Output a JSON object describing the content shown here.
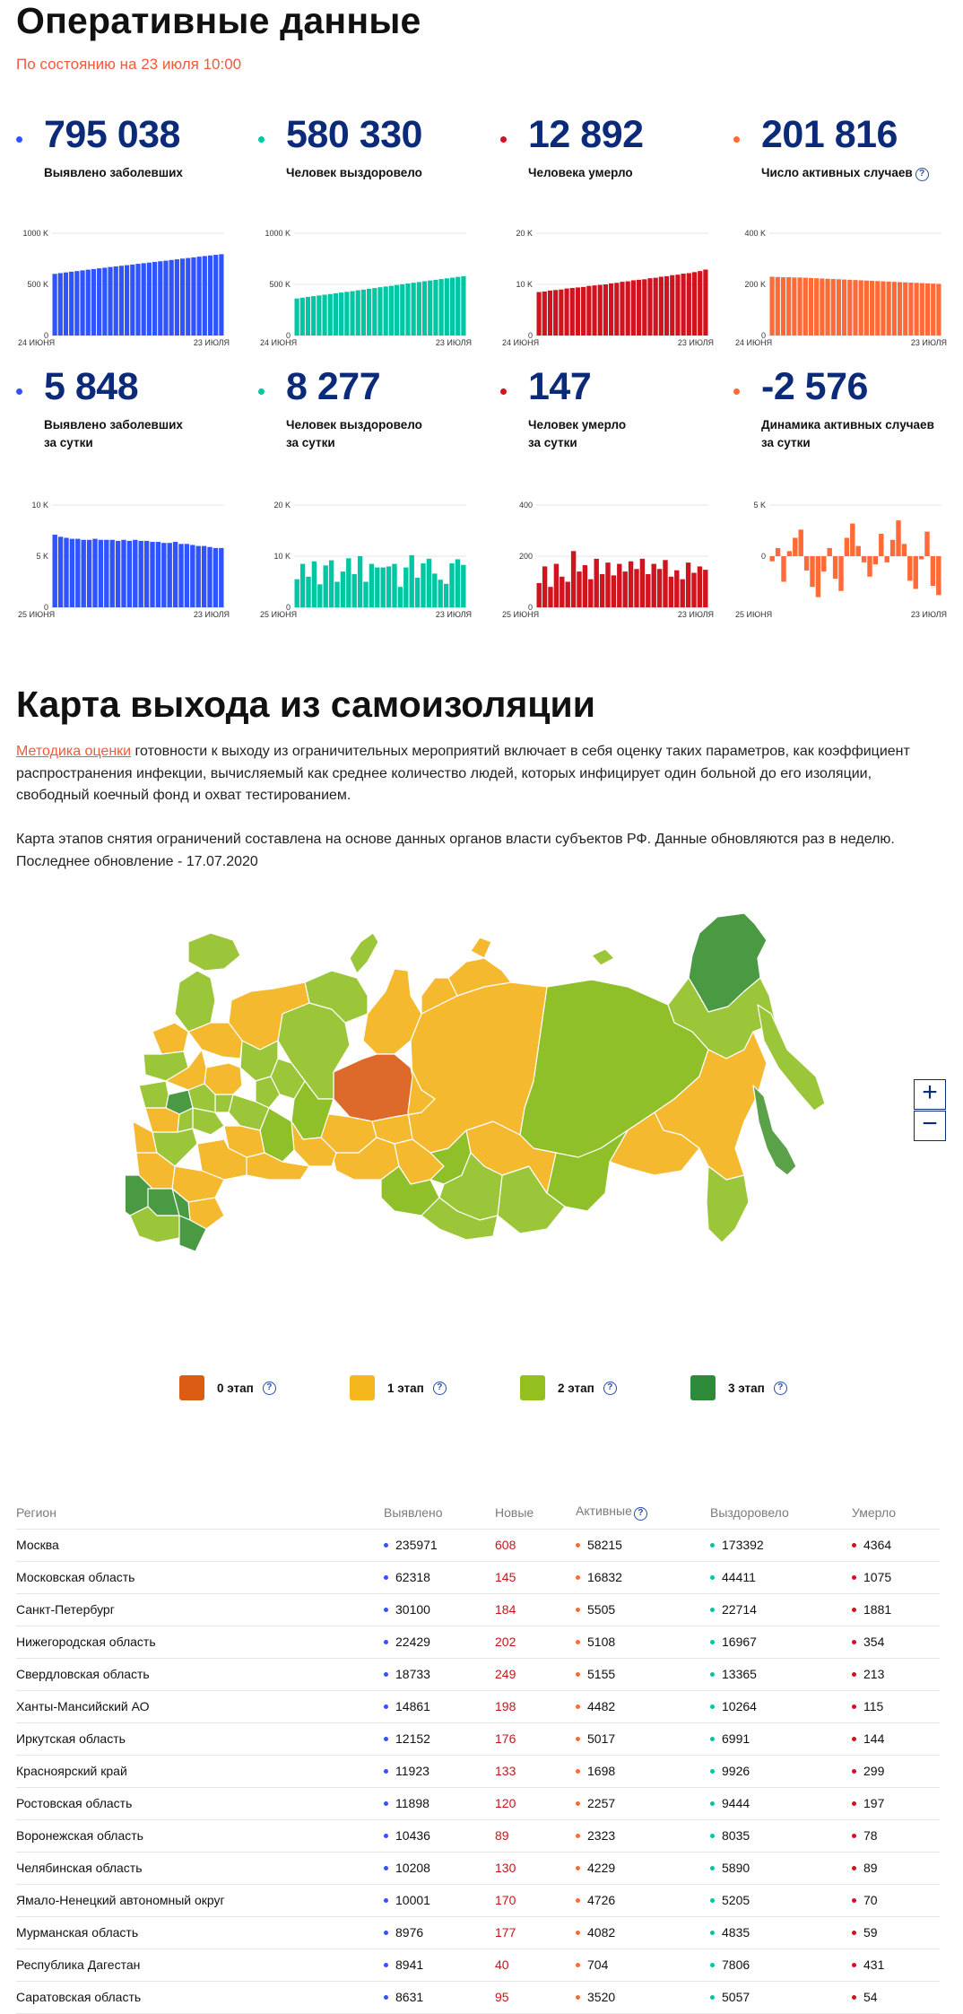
{
  "header": {
    "title": "Оперативные данные",
    "as_of": "По состоянию на 23 июля 10:00"
  },
  "colors": {
    "blue": "#2f54ff",
    "teal": "#00c7a3",
    "red": "#d1121f",
    "orange": "#ff6a36",
    "navy": "#0b2a7a",
    "accent": "#ec5b3b",
    "stage0": "#dd5c14",
    "stage1": "#f4b71c",
    "stage2": "#93c01f",
    "stage3": "#2e8b3a"
  },
  "stats_total": [
    {
      "value": "795 038",
      "label1": "Выявлено заболевших",
      "label2": "",
      "color": "blue",
      "help": false,
      "chart": {
        "type": "bar",
        "y_ticks": [
          "1000 K",
          "500 K",
          "0"
        ],
        "ymax": 1000,
        "x_start": "24 ИЮНЯ",
        "x_end": "23 ИЮЛЯ",
        "values": [
          603,
          610,
          617,
          624,
          630,
          637,
          644,
          650,
          657,
          663,
          670,
          676,
          682,
          688,
          694,
          701,
          707,
          713,
          720,
          726,
          732,
          739,
          745,
          752,
          758,
          764,
          771,
          777,
          783,
          789,
          795
        ]
      }
    },
    {
      "value": "580 330",
      "label1": "Человек выздоровело",
      "label2": "",
      "color": "teal",
      "help": false,
      "chart": {
        "type": "bar",
        "y_ticks": [
          "1000 K",
          "500 K",
          "0"
        ],
        "ymax": 1000,
        "x_start": "24 ИЮНЯ",
        "x_end": "23 ИЮЛЯ",
        "values": [
          362,
          370,
          378,
          385,
          392,
          399,
          406,
          413,
          420,
          427,
          434,
          442,
          449,
          456,
          464,
          472,
          479,
          486,
          494,
          501,
          509,
          516,
          523,
          531,
          538,
          545,
          552,
          559,
          566,
          573,
          580
        ]
      }
    },
    {
      "value": "12 892",
      "label1": "Человека умерло",
      "label2": "",
      "color": "red",
      "help": false,
      "chart": {
        "type": "bar",
        "y_ticks": [
          "20 K",
          "10 K",
          "0"
        ],
        "ymax": 20,
        "x_start": "24 ИЮНЯ",
        "x_end": "23 ИЮЛЯ",
        "values": [
          8.5,
          8.6,
          8.8,
          8.9,
          9.0,
          9.2,
          9.3,
          9.4,
          9.5,
          9.7,
          9.8,
          9.9,
          10.0,
          10.2,
          10.3,
          10.5,
          10.6,
          10.8,
          10.9,
          11.0,
          11.2,
          11.3,
          11.5,
          11.6,
          11.8,
          11.9,
          12.1,
          12.2,
          12.4,
          12.6,
          12.9
        ]
      }
    },
    {
      "value": "201 816",
      "label1": "Число активных случаев",
      "label2": "",
      "color": "orange",
      "help": true,
      "chart": {
        "type": "bar",
        "y_ticks": [
          "400 K",
          "200 K",
          "0"
        ],
        "ymax": 400,
        "x_start": "24 ИЮНЯ",
        "x_end": "23 ИЮЛЯ",
        "values": [
          230,
          229,
          228,
          228,
          227,
          227,
          226,
          225,
          224,
          223,
          222,
          221,
          220,
          219,
          218,
          217,
          216,
          215,
          214,
          213,
          212,
          211,
          210,
          209,
          208,
          207,
          206,
          205,
          204,
          203,
          202
        ]
      }
    }
  ],
  "stats_daily": [
    {
      "value": "5 848",
      "label1": "Выявлено заболевших",
      "label2": "за сутки",
      "color": "blue",
      "help": false,
      "chart": {
        "type": "bar",
        "y_ticks": [
          "10 K",
          "5 K",
          "0"
        ],
        "ymin": 0,
        "ymax": 10,
        "x_start": "25 ИЮНЯ",
        "x_end": "23 ИЮЛЯ",
        "values": [
          7.1,
          6.9,
          6.8,
          6.7,
          6.7,
          6.6,
          6.6,
          6.7,
          6.6,
          6.6,
          6.6,
          6.5,
          6.6,
          6.5,
          6.6,
          6.5,
          6.5,
          6.4,
          6.4,
          6.3,
          6.3,
          6.4,
          6.2,
          6.2,
          6.1,
          6.0,
          6.0,
          5.9,
          5.8,
          5.8
        ]
      }
    },
    {
      "value": "8 277",
      "label1": "Человек выздоровело",
      "label2": "за сутки",
      "color": "teal",
      "help": false,
      "chart": {
        "type": "bar",
        "y_ticks": [
          "20 K",
          "10 K",
          "0"
        ],
        "ymin": 0,
        "ymax": 20,
        "x_start": "25 ИЮНЯ",
        "x_end": "23 ИЮЛЯ",
        "values": [
          5.5,
          8.5,
          6.0,
          9.0,
          4.5,
          8.2,
          9.2,
          5.0,
          7.0,
          9.6,
          6.5,
          10.0,
          5.0,
          8.5,
          7.8,
          7.8,
          8.0,
          8.5,
          4.0,
          7.8,
          10.2,
          5.8,
          8.6,
          9.5,
          6.6,
          5.4,
          4.6,
          8.6,
          9.4,
          8.3
        ]
      }
    },
    {
      "value": "147",
      "label1": "Человек умерло",
      "label2": "за сутки",
      "color": "red",
      "help": false,
      "chart": {
        "type": "bar",
        "y_ticks": [
          "400",
          "200",
          "0"
        ],
        "ymin": 0,
        "ymax": 400,
        "x_start": "25 ИЮНЯ",
        "x_end": "23 ИЮЛЯ",
        "values": [
          95,
          160,
          80,
          170,
          120,
          100,
          220,
          140,
          165,
          110,
          190,
          130,
          175,
          125,
          170,
          140,
          180,
          150,
          190,
          130,
          170,
          150,
          185,
          120,
          145,
          110,
          175,
          135,
          160,
          147
        ]
      }
    },
    {
      "value": "-2 576",
      "label1": "Динамика активных случаев",
      "label2": "за сутки",
      "color": "orange",
      "help": false,
      "chart": {
        "type": "posneg",
        "y_ticks": [
          "5 K",
          "0",
          ""
        ],
        "ymin": -5,
        "ymax": 5,
        "x_start": "25 ИЮНЯ",
        "x_end": "23 ИЮЛЯ",
        "values": [
          -0.5,
          0.8,
          -2.5,
          0.5,
          1.8,
          2.6,
          -1.4,
          -3.0,
          -4.0,
          -1.5,
          0.8,
          -2.2,
          -3.4,
          1.8,
          3.2,
          1.0,
          -0.6,
          -2.0,
          -0.8,
          2.2,
          -0.6,
          1.6,
          3.5,
          1.2,
          -2.4,
          -3.2,
          -0.3,
          2.4,
          -2.9,
          -3.8
        ]
      }
    }
  ],
  "map_section": {
    "title": "Карта выхода из самоизоляции",
    "link_text": "Методика оценки",
    "para1": "готовности к выходу из ограничительных мероприятий включает в себя оценку таких параметров, как коэффициент распространения инфекции, вычисляемый как среднее количество людей, которых инфицирует один больной до его изоляции, свободный коечный фонд и охват тестированием.",
    "para2": "Карта этапов снятия ограничений составлена на основе данных органов власти субъектов РФ. Данные обновляются раз в неделю. Последнее обновление - 17.07.2020",
    "zoom_in": "+",
    "zoom_out": "−",
    "legend": [
      {
        "label": "0 этап",
        "color": "stage0"
      },
      {
        "label": "1 этап",
        "color": "stage1"
      },
      {
        "label": "2 этап",
        "color": "stage2"
      },
      {
        "label": "3 этап",
        "color": "stage3"
      }
    ]
  },
  "table": {
    "headers": [
      "Регион",
      "Выявлено",
      "Новые",
      "Активные",
      "Выздоровело",
      "Умерло"
    ],
    "rows": [
      [
        "Москва",
        "235971",
        "608",
        "58215",
        "173392",
        "4364"
      ],
      [
        "Московская область",
        "62318",
        "145",
        "16832",
        "44411",
        "1075"
      ],
      [
        "Санкт-Петербург",
        "30100",
        "184",
        "5505",
        "22714",
        "1881"
      ],
      [
        "Нижегородская область",
        "22429",
        "202",
        "5108",
        "16967",
        "354"
      ],
      [
        "Свердловская область",
        "18733",
        "249",
        "5155",
        "13365",
        "213"
      ],
      [
        "Ханты-Мансийский АО",
        "14861",
        "198",
        "4482",
        "10264",
        "115"
      ],
      [
        "Иркутская область",
        "12152",
        "176",
        "5017",
        "6991",
        "144"
      ],
      [
        "Красноярский край",
        "11923",
        "133",
        "1698",
        "9926",
        "299"
      ],
      [
        "Ростовская область",
        "11898",
        "120",
        "2257",
        "9444",
        "197"
      ],
      [
        "Воронежская область",
        "10436",
        "89",
        "2323",
        "8035",
        "78"
      ],
      [
        "Челябинская область",
        "10208",
        "130",
        "4229",
        "5890",
        "89"
      ],
      [
        "Ямало-Ненецкий автономный округ",
        "10001",
        "170",
        "4726",
        "5205",
        "70"
      ],
      [
        "Мурманская область",
        "8976",
        "177",
        "4082",
        "4835",
        "59"
      ],
      [
        "Республика Дагестан",
        "8941",
        "40",
        "704",
        "7806",
        "431"
      ],
      [
        "Саратовская область",
        "8631",
        "95",
        "3520",
        "5057",
        "54"
      ]
    ]
  }
}
